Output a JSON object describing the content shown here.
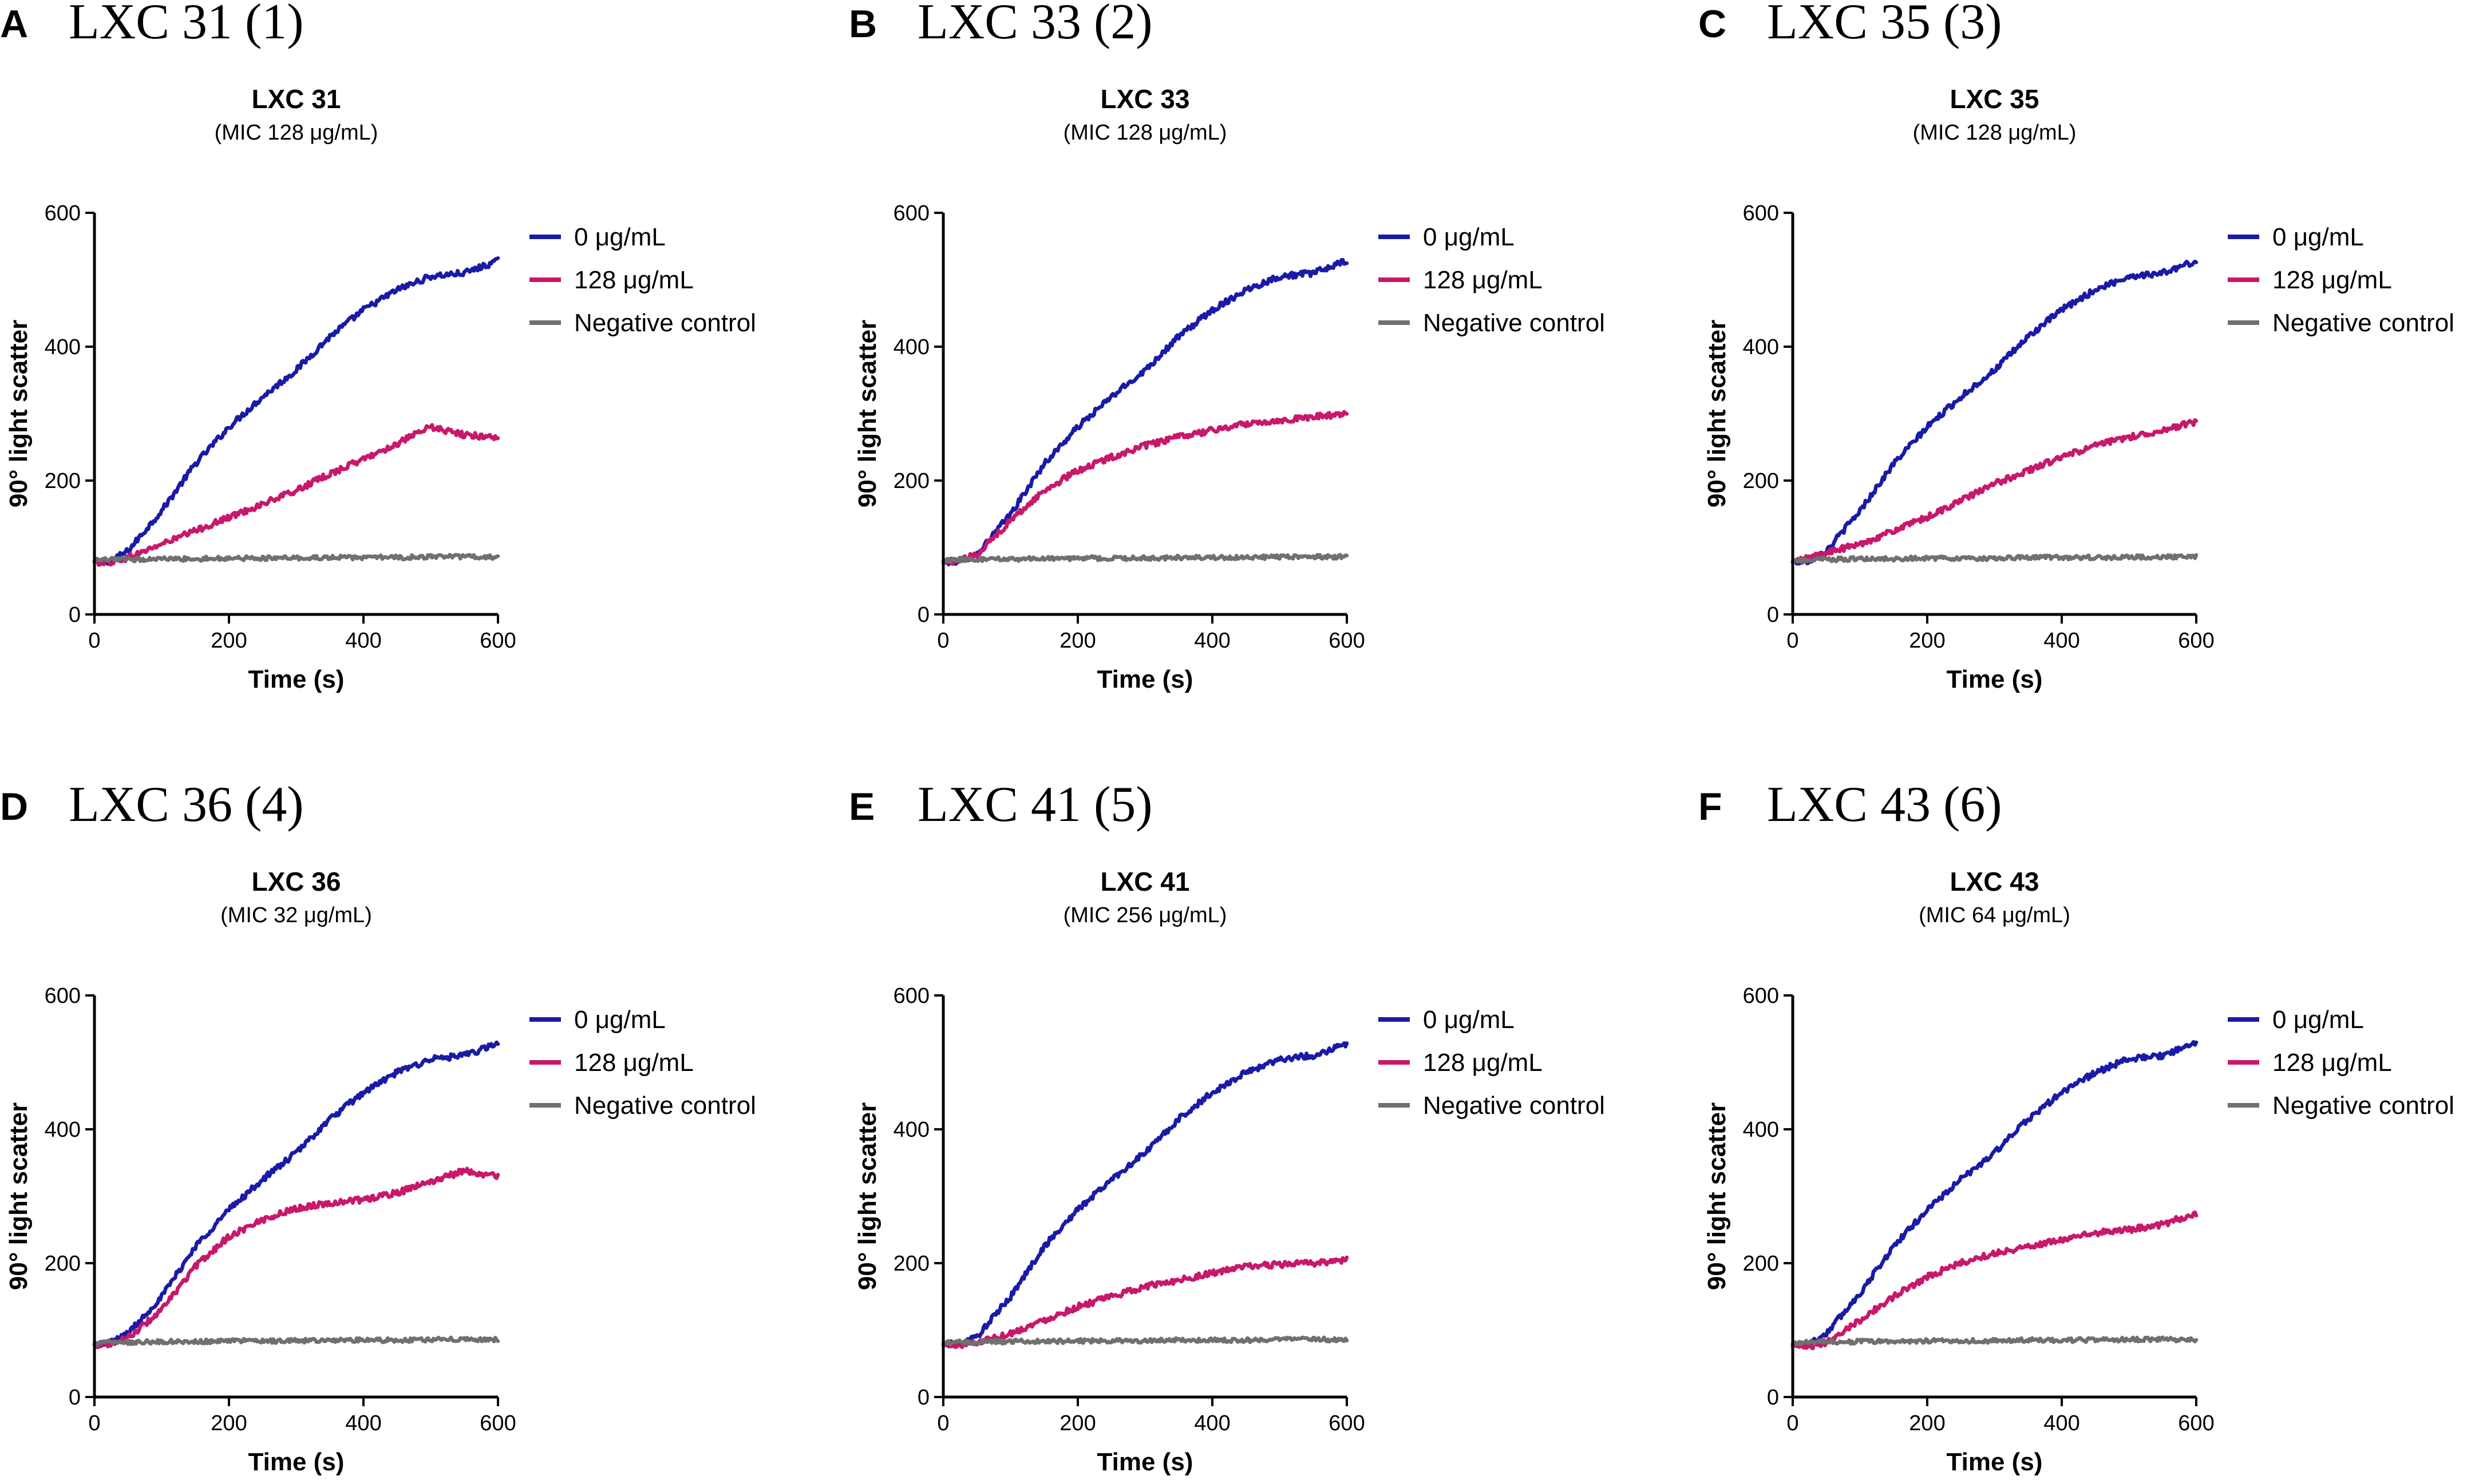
{
  "colors": {
    "series_0": "#1a1aa8",
    "series_128": "#c8186b",
    "negative": "#707070",
    "axis": "#000000"
  },
  "legend_labels": [
    "0 μg/mL",
    "128 μg/mL",
    "Negative control"
  ],
  "chart_data": [
    {
      "type": "line",
      "letter": "A",
      "header": "LXC 31 (1)",
      "title": "LXC 31",
      "subtitle": "(MIC 128 μg/mL)",
      "xlabel": "Time (s)",
      "ylabel": "90° light scatter",
      "xlim": [
        0,
        600
      ],
      "ylim": [
        0,
        600
      ],
      "xticks": [
        0,
        200,
        400,
        600
      ],
      "yticks": [
        0,
        200,
        400,
        600
      ],
      "legend_position": "right",
      "x": [
        0,
        25,
        50,
        100,
        150,
        200,
        250,
        300,
        350,
        400,
        450,
        500,
        550,
        600
      ],
      "series": [
        {
          "name": "0 μg/mL",
          "color_key": "series_0",
          "values": [
            78,
            80,
            95,
            155,
            225,
            280,
            325,
            365,
            415,
            455,
            485,
            505,
            510,
            528
          ]
        },
        {
          "name": "128 μg/mL",
          "color_key": "series_128",
          "values": [
            78,
            78,
            85,
            105,
            125,
            145,
            165,
            185,
            210,
            232,
            255,
            280,
            268,
            265
          ]
        },
        {
          "name": "Negative control",
          "color_key": "negative",
          "values": [
            80,
            82,
            82,
            83,
            83,
            84,
            84,
            84,
            85,
            85,
            85,
            86,
            86,
            86
          ]
        }
      ]
    },
    {
      "type": "line",
      "letter": "B",
      "header": "LXC 33 (2)",
      "title": "LXC 33",
      "subtitle": "(MIC 128 μg/mL)",
      "xlabel": "Time (s)",
      "ylabel": "90° light scatter",
      "xlim": [
        0,
        600
      ],
      "ylim": [
        0,
        600
      ],
      "xticks": [
        0,
        200,
        400,
        600
      ],
      "yticks": [
        0,
        200,
        400,
        600
      ],
      "legend_position": "right",
      "x": [
        0,
        25,
        50,
        100,
        150,
        200,
        250,
        300,
        350,
        400,
        450,
        500,
        550,
        600
      ],
      "series": [
        {
          "name": "0 μg/mL",
          "color_key": "series_0",
          "values": [
            78,
            80,
            90,
            150,
            225,
            280,
            325,
            365,
            415,
            455,
            485,
            505,
            510,
            528
          ]
        },
        {
          "name": "128 μg/mL",
          "color_key": "series_128",
          "values": [
            78,
            80,
            90,
            140,
            185,
            215,
            235,
            252,
            265,
            275,
            285,
            290,
            295,
            300
          ]
        },
        {
          "name": "Negative control",
          "color_key": "negative",
          "values": [
            80,
            82,
            82,
            83,
            83,
            84,
            84,
            84,
            85,
            85,
            85,
            86,
            86,
            86
          ]
        }
      ]
    },
    {
      "type": "line",
      "letter": "C",
      "header": "LXC 35 (3)",
      "title": "LXC 35",
      "subtitle": "(MIC 128 μg/mL)",
      "xlabel": "Time (s)",
      "ylabel": "90° light scatter",
      "xlim": [
        0,
        600
      ],
      "ylim": [
        0,
        600
      ],
      "xticks": [
        0,
        200,
        400,
        600
      ],
      "yticks": [
        0,
        200,
        400,
        600
      ],
      "legend_position": "right",
      "x": [
        0,
        25,
        50,
        100,
        150,
        200,
        250,
        300,
        350,
        400,
        450,
        500,
        550,
        600
      ],
      "series": [
        {
          "name": "0 μg/mL",
          "color_key": "series_0",
          "values": [
            78,
            80,
            95,
            155,
            225,
            280,
            325,
            365,
            415,
            455,
            485,
            505,
            510,
            528
          ]
        },
        {
          "name": "128 μg/mL",
          "color_key": "series_128",
          "values": [
            78,
            85,
            92,
            105,
            125,
            145,
            170,
            195,
            215,
            235,
            252,
            265,
            275,
            288
          ]
        },
        {
          "name": "Negative control",
          "color_key": "negative",
          "values": [
            80,
            82,
            82,
            83,
            83,
            84,
            84,
            84,
            85,
            85,
            85,
            86,
            86,
            86
          ]
        }
      ]
    },
    {
      "type": "line",
      "letter": "D",
      "header": "LXC 36 (4)",
      "title": "LXC 36",
      "subtitle": "(MIC 32 μg/mL)",
      "xlabel": "Time (s)",
      "ylabel": "90° light scatter",
      "xlim": [
        0,
        600
      ],
      "ylim": [
        0,
        600
      ],
      "xticks": [
        0,
        200,
        400,
        600
      ],
      "yticks": [
        0,
        200,
        400,
        600
      ],
      "legend_position": "right",
      "x": [
        0,
        25,
        50,
        100,
        150,
        200,
        250,
        300,
        350,
        400,
        450,
        500,
        550,
        600
      ],
      "series": [
        {
          "name": "0 μg/mL",
          "color_key": "series_0",
          "values": [
            78,
            82,
            95,
            150,
            225,
            280,
            325,
            365,
            415,
            455,
            485,
            505,
            510,
            528
          ]
        },
        {
          "name": "128 μg/mL",
          "color_key": "series_128",
          "values": [
            78,
            80,
            88,
            130,
            195,
            240,
            265,
            282,
            290,
            295,
            305,
            322,
            338,
            330
          ]
        },
        {
          "name": "Negative control",
          "color_key": "negative",
          "values": [
            80,
            82,
            82,
            83,
            83,
            84,
            84,
            84,
            85,
            85,
            85,
            86,
            86,
            86
          ]
        }
      ]
    },
    {
      "type": "line",
      "letter": "E",
      "header": "LXC 41 (5)",
      "title": "LXC 41",
      "subtitle": "(MIC 256 μg/mL)",
      "xlabel": "Time (s)",
      "ylabel": "90° light scatter",
      "xlim": [
        0,
        600
      ],
      "ylim": [
        0,
        600
      ],
      "xticks": [
        0,
        200,
        400,
        600
      ],
      "yticks": [
        0,
        200,
        400,
        600
      ],
      "legend_position": "right",
      "x": [
        0,
        25,
        50,
        100,
        150,
        200,
        250,
        300,
        350,
        400,
        450,
        500,
        550,
        600
      ],
      "series": [
        {
          "name": "0 μg/mL",
          "color_key": "series_0",
          "values": [
            78,
            80,
            90,
            150,
            225,
            280,
            325,
            365,
            415,
            455,
            485,
            505,
            510,
            528
          ]
        },
        {
          "name": "128 μg/mL",
          "color_key": "series_128",
          "values": [
            78,
            78,
            82,
            95,
            115,
            135,
            150,
            165,
            175,
            185,
            195,
            198,
            200,
            205
          ]
        },
        {
          "name": "Negative control",
          "color_key": "negative",
          "values": [
            80,
            82,
            82,
            83,
            83,
            84,
            84,
            84,
            85,
            85,
            85,
            86,
            86,
            86
          ]
        }
      ]
    },
    {
      "type": "line",
      "letter": "F",
      "header": "LXC 43 (6)",
      "title": "LXC 43",
      "subtitle": "(MIC 64 μg/mL)",
      "xlabel": "Time (s)",
      "ylabel": "90° light scatter",
      "xlim": [
        0,
        600
      ],
      "ylim": [
        0,
        600
      ],
      "xticks": [
        0,
        200,
        400,
        600
      ],
      "yticks": [
        0,
        200,
        400,
        600
      ],
      "legend_position": "right",
      "x": [
        0,
        25,
        50,
        100,
        150,
        200,
        250,
        300,
        350,
        400,
        450,
        500,
        550,
        600
      ],
      "series": [
        {
          "name": "0 μg/mL",
          "color_key": "series_0",
          "values": [
            78,
            80,
            95,
            155,
            225,
            280,
            325,
            365,
            415,
            455,
            485,
            505,
            510,
            528
          ]
        },
        {
          "name": "128 μg/mL",
          "color_key": "series_128",
          "values": [
            75,
            75,
            82,
            115,
            150,
            180,
            200,
            215,
            225,
            235,
            245,
            250,
            258,
            275
          ]
        },
        {
          "name": "Negative control",
          "color_key": "negative",
          "values": [
            80,
            82,
            82,
            83,
            83,
            84,
            84,
            84,
            85,
            85,
            85,
            86,
            86,
            86
          ]
        }
      ]
    }
  ]
}
